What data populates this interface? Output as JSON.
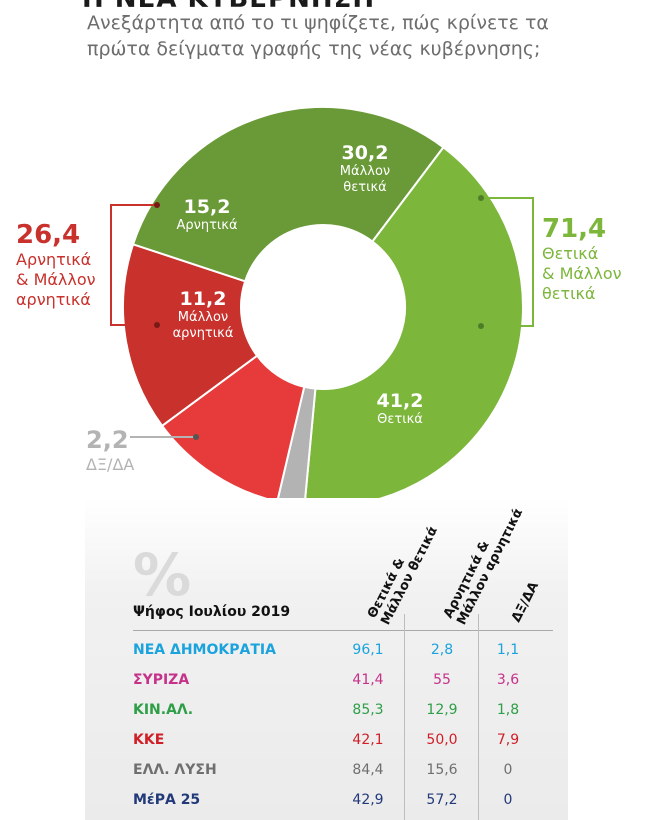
{
  "header": {
    "title_fragment": "Η ΝΕΑ ΚΥΒΕΡΝΗΣΗ",
    "question": "Ανεξάρτητα από το τι ψηφίζετε, πώς κρίνετε τα πρώτα δείγματα γραφής της νέας κυβέρνησης;"
  },
  "chart_data": {
    "type": "pie",
    "variant": "donut",
    "title": "Ανεξάρτητα από το τι ψηφίζετε, πώς κρίνετε τα πρώτα δείγματα γραφής της νέας κυβέρνησης;",
    "slices": [
      {
        "label": "Θετικά",
        "value": 41.2,
        "value_text": "41,2",
        "color": "#7cb63b"
      },
      {
        "label": "ΔΞ/ΔΑ",
        "value": 2.2,
        "value_text": "2,2",
        "color": "#b3b3b3"
      },
      {
        "label": "Μάλλον αρνητικά",
        "value": 11.2,
        "value_text": "11,2",
        "color": "#e63b3a"
      },
      {
        "label": "Αρνητικά",
        "value": 15.2,
        "value_text": "15,2",
        "color": "#c8312c"
      },
      {
        "label": "Μάλλον θετικά",
        "value": 30.2,
        "value_text": "30,2",
        "color": "#6a9a37"
      }
    ],
    "groups": [
      {
        "value_text": "71,4",
        "label": "Θετικά & Μάλλον θετικά",
        "color": "#7cb63b"
      },
      {
        "value_text": "26,4",
        "label": "Αρνητικά & Μάλλον αρνητικά",
        "color": "#c8312c"
      }
    ],
    "slice_captions": {
      "positive": "Θετικά",
      "rather_positive": "Μάλλον θετικά",
      "negative": "Αρνητικά",
      "rather_negative": "Μάλλον αρνητικά",
      "dk": "ΔΞ/ΔΑ"
    },
    "group_captions": {
      "positive_lines": [
        "Θετικά",
        "& Μάλλον",
        "θετικά"
      ],
      "negative_lines": [
        "Αρνητικά",
        "& Μάλλον",
        "αρνητικά"
      ]
    }
  },
  "table": {
    "percent_symbol": "%",
    "row_header": "Ψήφος Ιουλίου 2019",
    "columns": [
      {
        "lines": [
          "Θετικά &",
          "Μάλλον θετικά"
        ]
      },
      {
        "lines": [
          "Αρνητικά &",
          "Μάλλον αρνητικά"
        ]
      },
      {
        "lines": [
          "ΔΞ/ΔΑ"
        ]
      }
    ],
    "rows": [
      {
        "party": "ΝΕΑ ΔΗΜΟΚΡΑΤΙΑ",
        "color": "#1aa3dc",
        "v1": "96,1",
        "v2": "2,8",
        "v3": "1,1"
      },
      {
        "party": "ΣΥΡΙΖΑ",
        "color": "#c6318a",
        "v1": "41,4",
        "v2": "55",
        "v3": "3,6"
      },
      {
        "party": "ΚΙΝ.ΑΛ.",
        "color": "#2e9e47",
        "v1": "85,3",
        "v2": "12,9",
        "v3": "1,8"
      },
      {
        "party": "ΚΚΕ",
        "color": "#cf2027",
        "v1": "42,1",
        "v2": "50,0",
        "v3": "7,9"
      },
      {
        "party": "ΕΛΛ. ΛΥΣΗ",
        "color": "#6f6f6f",
        "v1": "84,4",
        "v2": "15,6",
        "v3": "0"
      },
      {
        "party": "ΜέΡΑ 25",
        "color": "#233a7a",
        "v1": "42,9",
        "v2": "57,2",
        "v3": "0"
      }
    ]
  }
}
